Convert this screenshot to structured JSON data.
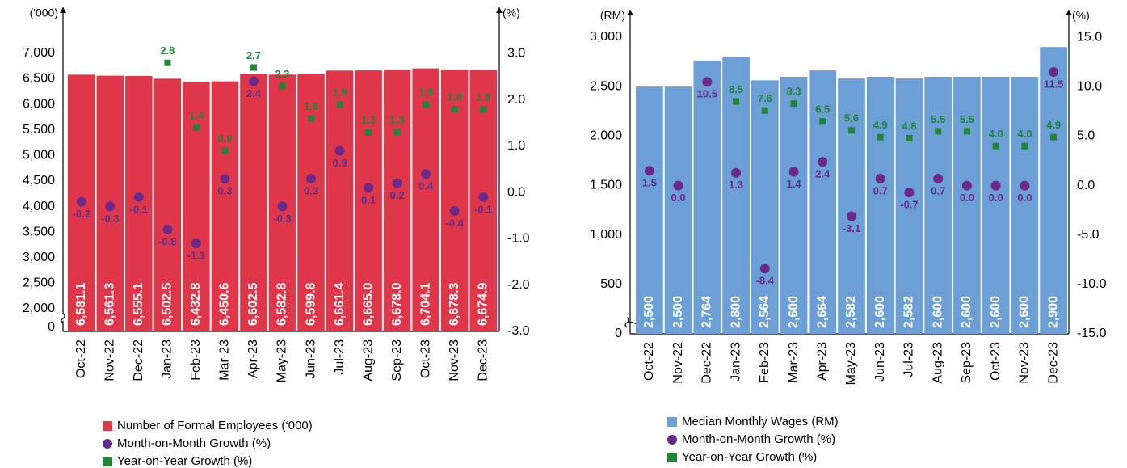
{
  "chart_data": [
    {
      "type": "bar",
      "y_label": "('000)",
      "y2_label": "(%)",
      "categories": [
        "Oct-22",
        "Nov-22",
        "Dec-22",
        "Jan-23",
        "Feb-23",
        "Mar-23",
        "Apr-23",
        "May-23",
        "Jun-23",
        "Jul-23",
        "Aug-23",
        "Sep-23",
        "Oct-23",
        "Nov-23",
        "Dec-23"
      ],
      "series": [
        {
          "name": "Number of Formal Employees (‘000)",
          "color": "#e0364a",
          "marker": "bar",
          "values": [
            6581.1,
            6561.3,
            6555.1,
            6502.5,
            6432.8,
            6450.6,
            6602.5,
            6582.8,
            6599.8,
            6661.4,
            6665.0,
            6678.0,
            6704.1,
            6678.3,
            6674.9
          ],
          "value_labels": [
            "6,581.1",
            "6,561.3",
            "6,555.1",
            "6,502.5",
            "6,432.8",
            "6,450.6",
            "6,602.5",
            "6,582.8",
            "6,599.8",
            "6,661.4",
            "6,665.0",
            "6,678.0",
            "6,704.1",
            "6,678.3",
            "6,674.9"
          ]
        },
        {
          "name": "Month-on-Month Growth (%)",
          "color": "#6a2a8c",
          "label_color": "#5a3190",
          "marker": "circle",
          "axis": "y2",
          "values": [
            -0.2,
            -0.3,
            -0.1,
            -0.8,
            -1.1,
            0.3,
            2.4,
            -0.3,
            0.3,
            0.9,
            0.1,
            0.2,
            0.4,
            -0.4,
            -0.1
          ],
          "value_labels": [
            "-0.2",
            "-0.3",
            "-0.1",
            "-0.8",
            "-1.1",
            "0.3",
            "2.4",
            "-0.3",
            "0.3",
            "0.9",
            "0.1",
            "0.2",
            "0.4",
            "-0.4",
            "-0.1"
          ]
        },
        {
          "name": "Year-on-Year Growth (%)",
          "color": "#1e8636",
          "label_color": "#1e8636",
          "marker": "square",
          "axis": "y2",
          "values": [
            null,
            null,
            null,
            2.8,
            1.4,
            0.9,
            2.7,
            2.3,
            1.6,
            1.9,
            1.3,
            1.3,
            1.9,
            1.8,
            1.8
          ],
          "value_labels": [
            null,
            null,
            null,
            "2.8",
            "1.4",
            "0.9",
            "2.7",
            "2.3",
            "1.6",
            "1.9",
            "1.3",
            "1.3",
            "1.9",
            "1.8",
            "1.8"
          ]
        }
      ],
      "ylim": [
        0,
        7900
      ],
      "axis_break": [
        0,
        2000
      ],
      "yticks": [
        0,
        {
          "value": 2000,
          "label": "2,000"
        },
        {
          "value": 2500,
          "label": "2,500"
        },
        {
          "value": 3000,
          "label": "3,000"
        },
        {
          "value": 3500,
          "label": "3,500"
        },
        {
          "value": 4000,
          "label": "4,000"
        },
        {
          "value": 4500,
          "label": "4,500"
        },
        {
          "value": 5000,
          "label": "5,000"
        },
        {
          "value": 5500,
          "label": "5,500"
        },
        {
          "value": 6000,
          "label": "6,000"
        },
        {
          "value": 6500,
          "label": "6,500"
        },
        {
          "value": 7000,
          "label": "7,000"
        }
      ],
      "y2lim": [
        -3.0,
        4.0
      ],
      "y2ticks": [
        {
          "value": -3,
          "label": "-3.0"
        },
        {
          "value": -2,
          "label": "-2.0"
        },
        {
          "value": -1,
          "label": "-1.0"
        },
        {
          "value": 0,
          "label": "0.0"
        },
        {
          "value": 1,
          "label": "1.0"
        },
        {
          "value": 2,
          "label": "2.0"
        },
        {
          "value": 3,
          "label": "3.0"
        }
      ]
    },
    {
      "type": "bar",
      "y_label": "(RM)",
      "y2_label": "(%)",
      "categories": [
        "Oct-22",
        "Nov-22",
        "Dec-22",
        "Jan-23",
        "Feb-23",
        "Mar-23",
        "Apr-23",
        "May-23",
        "Jun-23",
        "Jul-23",
        "Aug-23",
        "Sep-23",
        "Oct-23",
        "Nov-23",
        "Dec-23"
      ],
      "series": [
        {
          "name": "Median Monthly Wages (RM)",
          "color": "#6b9fd6",
          "marker": "bar",
          "values": [
            2500,
            2500,
            2764,
            2800,
            2564,
            2600,
            2664,
            2582,
            2600,
            2582,
            2600,
            2600,
            2600,
            2600,
            2900
          ],
          "value_labels": [
            "2,500",
            "2,500",
            "2,764",
            "2,800",
            "2,564",
            "2,600",
            "2,664",
            "2,582",
            "2,600",
            "2,582",
            "2,600",
            "2,600",
            "2,600",
            "2,600",
            "2,900"
          ]
        },
        {
          "name": "Month-on-Month Growth (%)",
          "color": "#6a2a8c",
          "label_color": "#6a2a8c",
          "marker": "circle",
          "axis": "y2",
          "values": [
            1.5,
            0.0,
            10.5,
            1.3,
            -8.4,
            1.4,
            2.4,
            -3.1,
            0.7,
            -0.7,
            0.7,
            0.0,
            0.0,
            0.0,
            11.5
          ],
          "value_labels": [
            "1.5",
            "0.0",
            "10.5",
            "1.3",
            "-8.4",
            "1.4",
            "2.4",
            "-3.1",
            "0.7",
            "-0.7",
            "0.7",
            "0.0",
            "0.0",
            "0.0",
            "11.5"
          ]
        },
        {
          "name": "Year-on-Year Growth (%)",
          "color": "#1e8636",
          "label_color": "#1e8636",
          "marker": "square",
          "axis": "y2",
          "values": [
            null,
            null,
            null,
            8.5,
            7.6,
            8.3,
            6.5,
            5.6,
            4.9,
            4.8,
            5.5,
            5.5,
            4.0,
            4.0,
            4.9
          ],
          "value_labels": [
            null,
            null,
            null,
            "8.5",
            "7.6",
            "8.3",
            "6.5",
            "5.6",
            "4.9",
            "4.8",
            "5.5",
            "5.5",
            "4.0",
            "4.0",
            "4.9"
          ]
        }
      ],
      "ylim": [
        0,
        3278
      ],
      "yticks": [
        0,
        500,
        {
          "value": 1000,
          "label": "1,000"
        },
        {
          "value": 1500,
          "label": "1,500"
        },
        {
          "value": 2000,
          "label": "2,000"
        },
        {
          "value": 2500,
          "label": "2,500"
        },
        {
          "value": 3000,
          "label": "3,000"
        }
      ],
      "y2lim": [
        -15.0,
        17.8
      ],
      "y2ticks": [
        {
          "value": -15,
          "label": "-15.0"
        },
        {
          "value": -10,
          "label": "-10.0"
        },
        {
          "value": -5,
          "label": "-5.0"
        },
        {
          "value": 0,
          "label": "0.0"
        },
        {
          "value": 5,
          "label": "5.0"
        },
        {
          "value": 10,
          "label": "10.0"
        },
        {
          "value": 15,
          "label": "15.0"
        }
      ]
    }
  ]
}
